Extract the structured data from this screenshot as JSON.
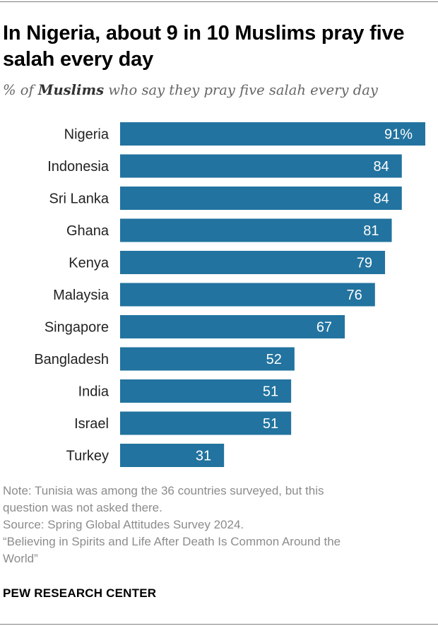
{
  "header": {
    "title": "In Nigeria, about 9 in 10 Muslims pray five salah every day",
    "subtitle_prefix": "% of ",
    "subtitle_emphasis": "Muslims",
    "subtitle_suffix": " who say they pray five salah every day"
  },
  "chart_data": {
    "type": "bar",
    "orientation": "horizontal",
    "categories": [
      "Nigeria",
      "Indonesia",
      "Sri Lanka",
      "Ghana",
      "Kenya",
      "Malaysia",
      "Singapore",
      "Bangladesh",
      "India",
      "Israel",
      "Turkey"
    ],
    "values": [
      91,
      84,
      84,
      81,
      79,
      76,
      67,
      52,
      51,
      51,
      31
    ],
    "value_labels": [
      "91%",
      "84",
      "84",
      "81",
      "79",
      "76",
      "67",
      "52",
      "51",
      "51",
      "31"
    ],
    "unit": "%",
    "xlim": [
      0,
      91
    ],
    "bar_color": "#22739f",
    "grid": false,
    "legend": "none"
  },
  "footer": {
    "note_line1": "Note: Tunisia was among the 36 countries surveyed, but this",
    "note_line2": "question was not asked there.",
    "source": "Source: Spring Global Attitudes Survey 2024.",
    "report_line1": "“Believing in Spirits and Life After Death Is Common Around the",
    "report_line2": "World”",
    "brand": "PEW RESEARCH CENTER"
  }
}
